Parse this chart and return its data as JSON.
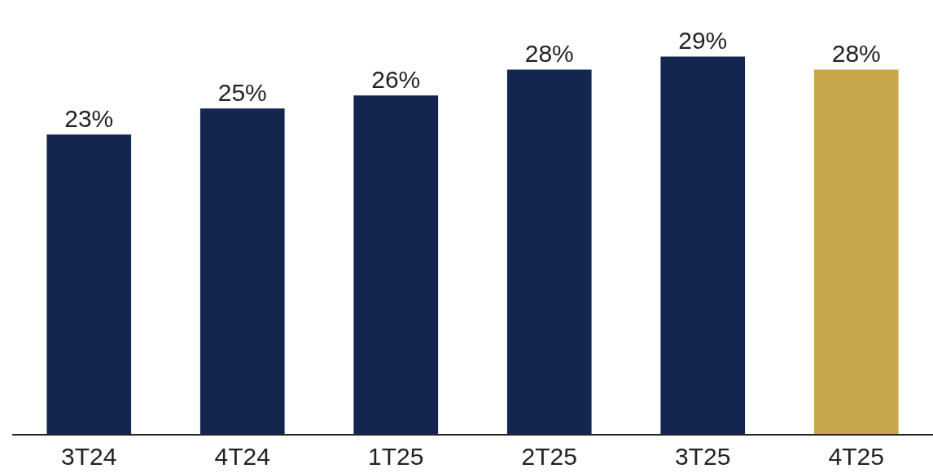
{
  "chart_data": {
    "type": "bar",
    "categories": [
      "3T24",
      "4T24",
      "1T25",
      "2T25",
      "3T25",
      "4T25"
    ],
    "values": [
      23,
      25,
      26,
      28,
      29,
      28
    ],
    "colors": [
      "#14264f",
      "#14264f",
      "#14264f",
      "#14264f",
      "#14264f",
      "#c8a74a"
    ],
    "value_labels": [
      "23%",
      "25%",
      "26%",
      "28%",
      "29%",
      "28%"
    ],
    "tick_labels": "x"
  }
}
